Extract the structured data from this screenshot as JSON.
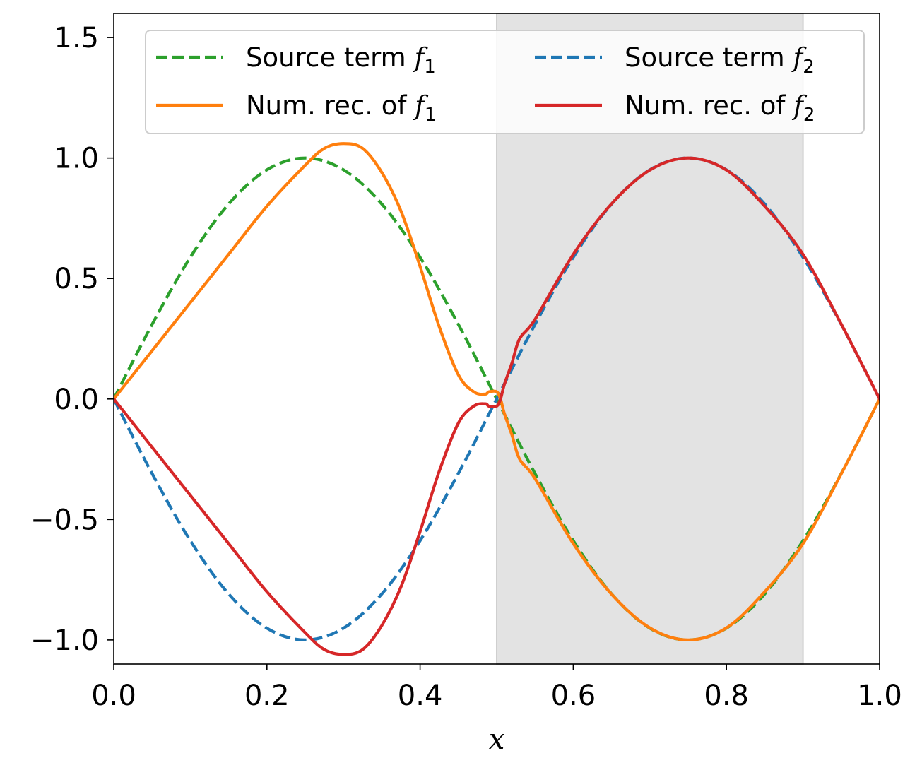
{
  "chart_data": {
    "type": "line",
    "title": "",
    "xlabel": "x",
    "ylabel": "",
    "xlim": [
      0.0,
      1.0
    ],
    "ylim": [
      -1.1,
      1.6
    ],
    "xticks": [
      0.0,
      0.2,
      0.4,
      0.6,
      0.8,
      1.0
    ],
    "xtick_labels": [
      "0.0",
      "0.2",
      "0.4",
      "0.6",
      "0.8",
      "1.0"
    ],
    "yticks": [
      -1.0,
      -0.5,
      0.0,
      0.5,
      1.0,
      1.5
    ],
    "ytick_labels": [
      "−1.0",
      "−0.5",
      "0.0",
      "0.5",
      "1.0",
      "1.5"
    ],
    "shaded_region": {
      "x_start": 0.5,
      "x_end": 0.9,
      "color": "#e3e3e3"
    },
    "legend": {
      "position": "top-right",
      "columns": 2,
      "entries": [
        {
          "prefix": "Source term ",
          "var": "f",
          "sub": "1",
          "series": "source_f1"
        },
        {
          "prefix": "Source term ",
          "var": "f",
          "sub": "2",
          "series": "source_f2"
        },
        {
          "prefix": "Num. rec. of ",
          "var": "f",
          "sub": "1",
          "series": "rec_f1"
        },
        {
          "prefix": "Num. rec. of ",
          "var": "f",
          "sub": "2",
          "series": "rec_f2"
        }
      ]
    },
    "series": [
      {
        "id": "source_f1",
        "name": "Source term f1",
        "color": "#2ca02c",
        "style": "dashed",
        "x": [
          0,
          0.05,
          0.1,
          0.15,
          0.2,
          0.25,
          0.3,
          0.35,
          0.4,
          0.45,
          0.5,
          0.55,
          0.6,
          0.65,
          0.7,
          0.75,
          0.8,
          0.85,
          0.9,
          0.95,
          1.0
        ],
        "y": [
          0,
          0.309,
          0.588,
          0.809,
          0.951,
          1.0,
          0.951,
          0.809,
          0.588,
          0.309,
          0,
          -0.309,
          -0.588,
          -0.809,
          -0.951,
          -1.0,
          -0.951,
          -0.809,
          -0.588,
          -0.309,
          0
        ]
      },
      {
        "id": "source_f2",
        "name": "Source term f2",
        "color": "#1f77b4",
        "style": "dashed",
        "x": [
          0,
          0.05,
          0.1,
          0.15,
          0.2,
          0.25,
          0.3,
          0.35,
          0.4,
          0.45,
          0.5,
          0.55,
          0.6,
          0.65,
          0.7,
          0.75,
          0.8,
          0.85,
          0.9,
          0.95,
          1.0
        ],
        "y": [
          0,
          -0.309,
          -0.588,
          -0.809,
          -0.951,
          -1.0,
          -0.951,
          -0.809,
          -0.588,
          -0.309,
          0,
          0.309,
          0.588,
          0.809,
          0.951,
          1.0,
          0.951,
          0.809,
          0.588,
          0.309,
          0
        ]
      },
      {
        "id": "rec_f1",
        "name": "Num. rec. of f1",
        "color": "#ff7f0e",
        "style": "solid",
        "x": [
          0,
          0.05,
          0.1,
          0.15,
          0.2,
          0.25,
          0.275,
          0.3,
          0.325,
          0.35,
          0.375,
          0.4,
          0.425,
          0.45,
          0.47,
          0.485,
          0.49,
          0.5,
          0.505,
          0.51,
          0.52,
          0.53,
          0.55,
          0.6,
          0.65,
          0.7,
          0.75,
          0.8,
          0.85,
          0.9,
          0.95,
          1.0
        ],
        "y": [
          0,
          0.2,
          0.4,
          0.6,
          0.8,
          0.97,
          1.04,
          1.06,
          1.04,
          0.94,
          0.78,
          0.55,
          0.3,
          0.1,
          0.03,
          0.02,
          0.03,
          0.03,
          0.0,
          -0.06,
          -0.15,
          -0.25,
          -0.33,
          -0.6,
          -0.81,
          -0.95,
          -1.0,
          -0.95,
          -0.8,
          -0.6,
          -0.31,
          0
        ]
      },
      {
        "id": "rec_f2",
        "name": "Num. rec. of f2",
        "color": "#d62728",
        "style": "solid",
        "x": [
          0,
          0.05,
          0.1,
          0.15,
          0.2,
          0.25,
          0.275,
          0.3,
          0.325,
          0.35,
          0.375,
          0.4,
          0.425,
          0.45,
          0.47,
          0.485,
          0.49,
          0.5,
          0.505,
          0.51,
          0.52,
          0.53,
          0.55,
          0.6,
          0.65,
          0.7,
          0.75,
          0.8,
          0.85,
          0.9,
          0.95,
          1.0
        ],
        "y": [
          0,
          -0.2,
          -0.4,
          -0.6,
          -0.8,
          -0.97,
          -1.04,
          -1.06,
          -1.04,
          -0.94,
          -0.78,
          -0.55,
          -0.3,
          -0.1,
          -0.03,
          -0.02,
          -0.03,
          -0.03,
          0.0,
          0.06,
          0.15,
          0.25,
          0.33,
          0.6,
          0.81,
          0.95,
          1.0,
          0.95,
          0.8,
          0.6,
          0.31,
          0
        ]
      }
    ]
  }
}
